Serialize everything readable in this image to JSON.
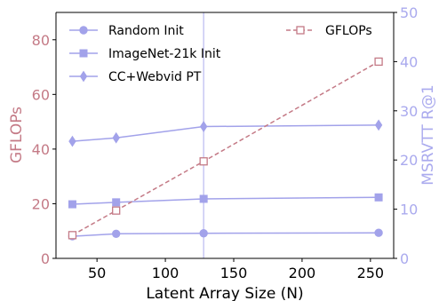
{
  "chart_data": {
    "type": "line",
    "xlabel": "Latent Array Size (N)",
    "ylabel_left": "GFLOPs",
    "ylabel_right": "MSRVTT R@1",
    "xlim": [
      20,
      267
    ],
    "ylim_left": [
      0,
      90
    ],
    "ylim_right": [
      0,
      50
    ],
    "xticks": [
      50,
      100,
      150,
      200,
      250
    ],
    "yticks_left": [
      0,
      20,
      40,
      60,
      80
    ],
    "yticks_right": [
      0,
      10,
      20,
      30,
      40,
      50
    ],
    "x": [
      32,
      64,
      128,
      256
    ],
    "vline_x": 128,
    "grid": false,
    "colors": {
      "left_axis": "#c47a86",
      "right_axis": "#aaaaee",
      "series_line": "#a2a2ea",
      "marker_fill": "#a2a2ea",
      "gflops": "#c47a86",
      "vline": "#c8c8f4"
    },
    "series": [
      {
        "name": "Random Init",
        "axis": "right",
        "marker": "circle",
        "values": [
          4.5,
          5.0,
          5.1,
          5.2
        ]
      },
      {
        "name": "ImageNet-21k Init",
        "axis": "right",
        "marker": "square",
        "values": [
          11.0,
          11.4,
          12.1,
          12.4
        ]
      },
      {
        "name": "CC+Webvid PT",
        "axis": "right",
        "marker": "diamond",
        "values": [
          23.8,
          24.5,
          26.8,
          27.1
        ]
      },
      {
        "name": "GFLOPs",
        "axis": "left",
        "marker": "open-square",
        "dashed": true,
        "values": [
          8.5,
          17.5,
          35.5,
          72.0
        ]
      }
    ]
  }
}
